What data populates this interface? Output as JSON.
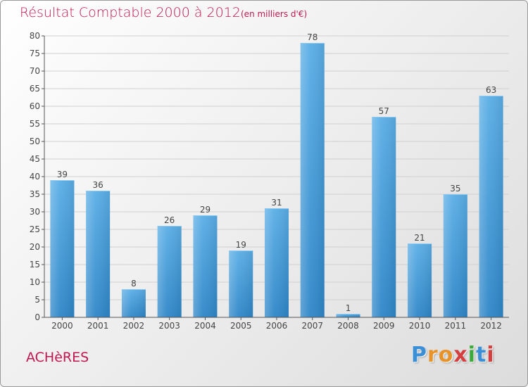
{
  "header": {
    "title": "Résultat Comptable 2000 à 2012",
    "subtitle": "(en milliers d'€)"
  },
  "footer": {
    "place": "ACHèRES",
    "logo_letters": [
      "P",
      "r",
      "o",
      "x",
      "i",
      "t",
      "i"
    ],
    "logo_colors": [
      "#3a8fd6",
      "#e8922a",
      "#e8922a",
      "#d43f3f",
      "#3aaa3a",
      "#3a8fd6",
      "#d43f3f"
    ]
  },
  "colors": {
    "title": "#c0174f",
    "bar_top": "#5aaee6",
    "bar_bottom": "#2e86c8",
    "grid": "#d0d0d0",
    "axis": "#555555"
  },
  "chart_data": {
    "type": "bar",
    "title": "Résultat Comptable 2000 à 2012",
    "xlabel": "",
    "ylabel": "",
    "ylim": [
      0,
      80
    ],
    "ytick_step": 5,
    "grid": true,
    "categories": [
      "2000",
      "2001",
      "2002",
      "2003",
      "2004",
      "2005",
      "2006",
      "2007",
      "2008",
      "2009",
      "2010",
      "2011",
      "2012"
    ],
    "values": [
      39,
      36,
      8,
      26,
      29,
      19,
      31,
      78,
      1,
      57,
      21,
      35,
      63
    ]
  }
}
